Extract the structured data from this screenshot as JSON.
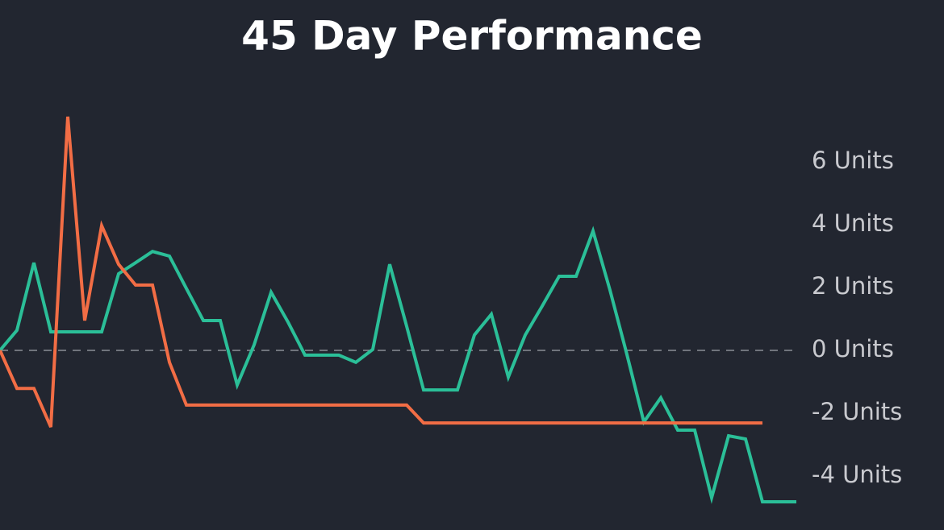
{
  "chart_data": {
    "type": "line",
    "title": "45 Day Performance",
    "categories": [
      null,
      null,
      null,
      null,
      null,
      null,
      null,
      null,
      null,
      null,
      null,
      null,
      null,
      null,
      null,
      null,
      null,
      null,
      null,
      null,
      null,
      null,
      null,
      null,
      null,
      null,
      null,
      null,
      null,
      null,
      null,
      null,
      null,
      null,
      null,
      null,
      null,
      null,
      null,
      null,
      null,
      null,
      null,
      null,
      null,
      null,
      null,
      null
    ],
    "series": [
      {
        "color": "#2bbf98",
        "values": [
          0,
          0.64,
          2.79,
          0.59,
          0.59,
          0.59,
          0.59,
          2.44,
          2.79,
          3.15,
          3.0,
          1.97,
          0.95,
          0.95,
          -1.1,
          0.18,
          1.85,
          0.9,
          -0.15,
          -0.15,
          -0.15,
          -0.38,
          0.03,
          2.74,
          0.77,
          -1.26,
          -1.26,
          -1.26,
          0.49,
          1.15,
          -0.85,
          0.49,
          1.41,
          2.36,
          2.36,
          3.8,
          1.92,
          -0.13,
          -2.28,
          -1.51,
          -2.54,
          -2.54,
          -4.69,
          -2.72,
          -2.82,
          -4.82,
          -4.82,
          -4.82
        ]
      },
      {
        "color": "#f26d45",
        "values": [
          0,
          -1.21,
          -1.21,
          -2.44,
          7.44,
          0.95,
          3.97,
          2.74,
          2.08,
          2.08,
          -0.38,
          -1.74,
          -1.74,
          -1.74,
          -1.74,
          -1.74,
          -1.74,
          -1.74,
          -1.74,
          -1.74,
          -1.74,
          -1.74,
          -1.74,
          -1.74,
          -1.74,
          -2.31,
          -2.31,
          -2.31,
          -2.31,
          -2.31,
          -2.31,
          -2.31,
          -2.31,
          -2.31,
          -2.31,
          -2.31,
          -2.31,
          -2.31,
          -2.31,
          -2.31,
          -2.31,
          -2.31,
          -2.31,
          -2.31,
          -2.31,
          -2.31,
          null,
          null
        ]
      }
    ],
    "ylim": [
      -5.5,
      7.8
    ],
    "yticks": [
      {
        "value": 6,
        "label": "6 Units"
      },
      {
        "value": 4,
        "label": "4 Units"
      },
      {
        "value": 2,
        "label": "2 Units"
      },
      {
        "value": 0,
        "label": "0 Units"
      },
      {
        "value": -2,
        "label": "-2 Units"
      },
      {
        "value": -4,
        "label": "-4 Units"
      }
    ],
    "baseline": 0,
    "y_axis_side": "right"
  }
}
